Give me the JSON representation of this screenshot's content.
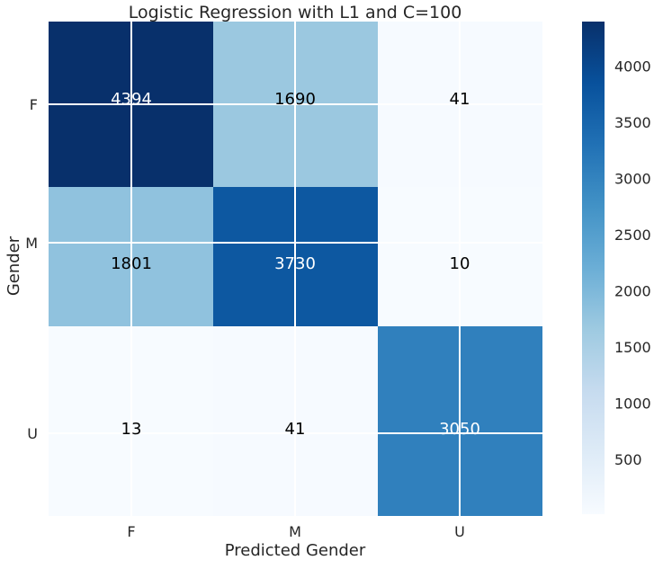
{
  "chart_data": {
    "type": "heatmap",
    "title": "Logistic Regression with L1 and C=100",
    "xlabel": "Predicted Gender",
    "ylabel": "Gender",
    "x_categories": [
      "F",
      "M",
      "U"
    ],
    "y_categories": [
      "F",
      "M",
      "U"
    ],
    "values": [
      [
        4394,
        1690,
        41
      ],
      [
        1801,
        3730,
        10
      ],
      [
        13,
        41,
        3050
      ]
    ],
    "colorbar": {
      "ticks": [
        500,
        1000,
        1500,
        2000,
        2500,
        3000,
        3500,
        4000
      ],
      "range": [
        10,
        4394
      ],
      "colormap": "Blues"
    },
    "grid": true
  }
}
